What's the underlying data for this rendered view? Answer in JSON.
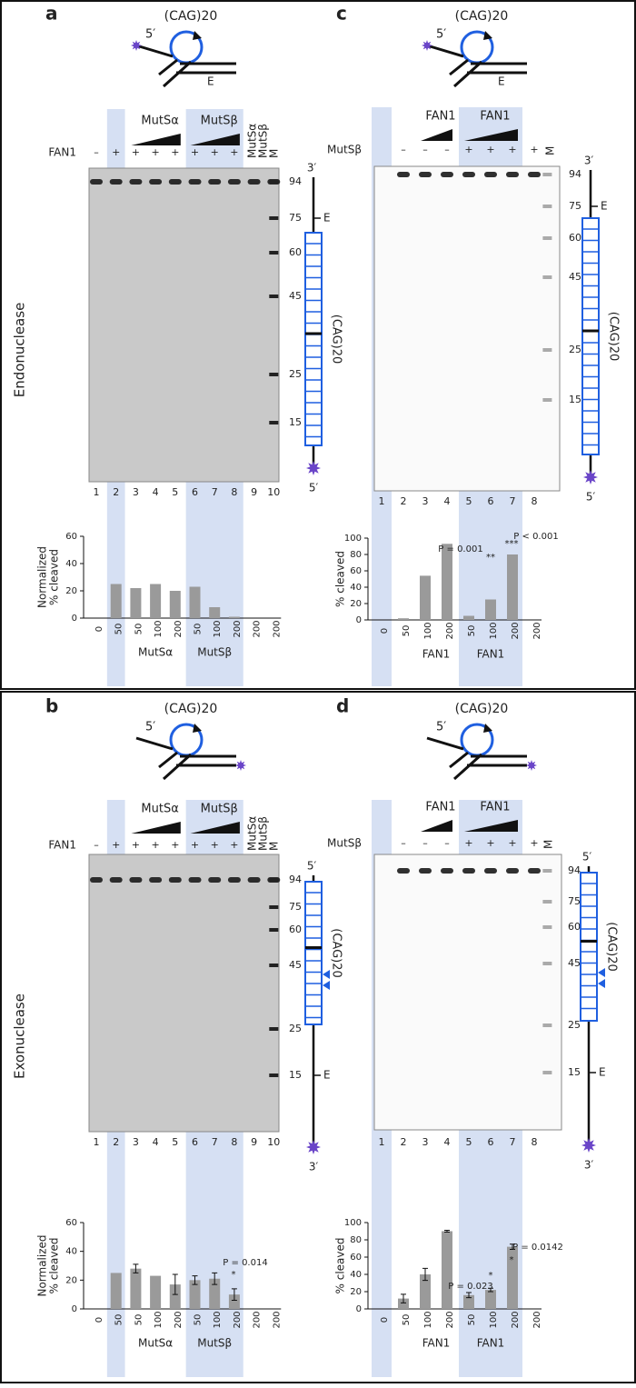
{
  "side_labels": [
    "Endonuclease",
    "Exonuclease"
  ],
  "panels": [
    {
      "label": "a",
      "schematic": {
        "repeat": "(CAG)20",
        "end": "5′",
        "cut": "E"
      },
      "headers": [
        "MutSα",
        "MutSβ"
      ],
      "rotated_headers": [
        "MutSα",
        "MutSβ",
        "M"
      ],
      "row_label": "FAN1",
      "signs": [
        "–",
        "+",
        "+",
        "+",
        "+",
        "+",
        "+",
        "+"
      ],
      "lanes": [
        "1",
        "2",
        "3",
        "4",
        "5",
        "6",
        "7",
        "8",
        "9",
        "10"
      ],
      "markers": [
        "94",
        "75",
        "60",
        "45",
        "25",
        "15"
      ],
      "strand": {
        "top": "3′",
        "bottom": "5′",
        "cut": "E",
        "repeat": "(CAG)20"
      }
    },
    {
      "label": "c",
      "schematic": {
        "repeat": "(CAG)20",
        "end": "5′",
        "cut": "E"
      },
      "headers": [
        "FAN1",
        "FAN1"
      ],
      "rotated_headers": [
        "M"
      ],
      "row_label": "MutSβ",
      "signs": [
        "–",
        "–",
        "–",
        "+",
        "+",
        "+",
        "+"
      ],
      "lanes": [
        "1",
        "2",
        "3",
        "4",
        "5",
        "6",
        "7",
        "8"
      ],
      "markers": [
        "94",
        "75",
        "60",
        "45",
        "25",
        "15"
      ],
      "strand": {
        "top": "3′",
        "bottom": "5′",
        "cut": "E",
        "repeat": "(CAG)20"
      }
    },
    {
      "label": "b",
      "schematic": {
        "repeat": "(CAG)20",
        "end": "5′"
      },
      "headers": [
        "MutSα",
        "MutSβ"
      ],
      "rotated_headers": [
        "MutSα",
        "MutSβ",
        "M"
      ],
      "row_label": "FAN1",
      "signs": [
        "–",
        "+",
        "+",
        "+",
        "+",
        "+",
        "+",
        "+"
      ],
      "lanes": [
        "1",
        "2",
        "3",
        "4",
        "5",
        "6",
        "7",
        "8",
        "9",
        "10"
      ],
      "markers": [
        "94",
        "75",
        "60",
        "45",
        "25",
        "15"
      ],
      "strand": {
        "top": "5′",
        "bottom": "3′",
        "cut": "E",
        "repeat": "(CAG)20"
      }
    },
    {
      "label": "d",
      "schematic": {
        "repeat": "(CAG)20",
        "end": "5′"
      },
      "headers": [
        "FAN1",
        "FAN1"
      ],
      "rotated_headers": [
        "M"
      ],
      "row_label": "MutSβ",
      "signs": [
        "–",
        "–",
        "–",
        "+",
        "+",
        "+",
        "+"
      ],
      "lanes": [
        "1",
        "2",
        "3",
        "4",
        "5",
        "6",
        "7",
        "8"
      ],
      "markers": [
        "94",
        "75",
        "60",
        "45",
        "25",
        "15"
      ],
      "strand": {
        "top": "5′",
        "bottom": "3′",
        "cut": "E",
        "repeat": "(CAG)20"
      }
    }
  ],
  "chart_data": [
    {
      "type": "bar",
      "ylabel": [
        "Normalized",
        "% cleaved"
      ],
      "color": "#9a9a9a",
      "categories": [
        "0",
        "50",
        "50",
        "100",
        "200",
        "50",
        "100",
        "200",
        "200",
        "200"
      ],
      "values": [
        0,
        25,
        22,
        25,
        20,
        23,
        8,
        1,
        0,
        0
      ],
      "ylim": [
        0,
        60
      ],
      "yticks": [
        0,
        20,
        40,
        60
      ],
      "groups": [
        "MutSα",
        "MutSβ"
      ]
    },
    {
      "type": "bar",
      "ylabel": [
        "% cleaved"
      ],
      "color": "#9a9a9a",
      "categories": [
        "0",
        "50",
        "100",
        "200",
        "50",
        "100",
        "200",
        "200"
      ],
      "values": [
        0,
        2,
        54,
        93,
        5,
        25,
        80,
        0
      ],
      "ylim": [
        0,
        100
      ],
      "yticks": [
        0,
        20,
        40,
        60,
        80,
        100
      ],
      "groups": [
        "FAN1",
        "FAN1"
      ],
      "annotations": [
        "P = 0.001",
        "**",
        "***",
        "P < 0.001"
      ]
    },
    {
      "type": "bar",
      "ylabel": [
        "Normalized",
        "% cleaved"
      ],
      "color": "#9a9a9a",
      "categories": [
        "0",
        "50",
        "50",
        "100",
        "200",
        "50",
        "100",
        "200",
        "200",
        "200"
      ],
      "values": [
        0,
        25,
        28,
        23,
        17,
        20,
        21,
        10,
        0,
        0
      ],
      "errors": [
        0,
        0,
        3,
        0,
        7,
        3,
        4,
        4,
        0,
        0
      ],
      "ylim": [
        0,
        60
      ],
      "yticks": [
        0,
        20,
        40,
        60
      ],
      "groups": [
        "MutSα",
        "MutSβ"
      ],
      "annotations": [
        "P = 0.014",
        "*"
      ]
    },
    {
      "type": "bar",
      "ylabel": [
        "% cleaved"
      ],
      "color": "#9a9a9a",
      "categories": [
        "0",
        "50",
        "100",
        "200",
        "50",
        "100",
        "200",
        "200"
      ],
      "values": [
        0,
        12,
        40,
        90,
        16,
        22,
        72,
        0
      ],
      "errors": [
        0,
        5,
        7,
        1,
        3,
        2,
        3,
        0
      ],
      "ylim": [
        0,
        100
      ],
      "yticks": [
        0,
        20,
        40,
        60,
        80,
        100
      ],
      "groups": [
        "FAN1",
        "FAN1"
      ],
      "annotations": [
        "P = 0.023",
        "*",
        "P = 0.0142",
        "*"
      ]
    }
  ]
}
